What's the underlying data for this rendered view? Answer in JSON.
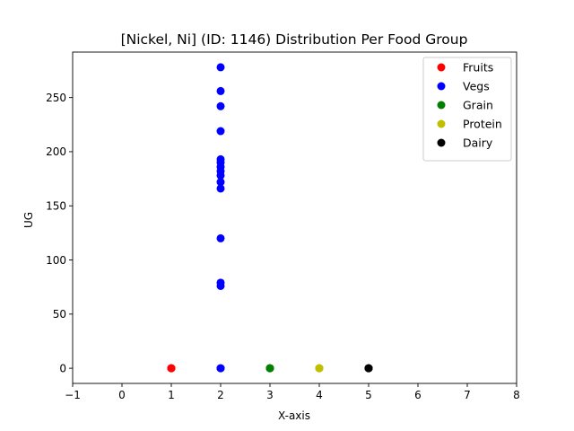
{
  "chart_data": {
    "type": "scatter",
    "title": "[Nickel, Ni] (ID: 1146) Distribution Per Food Group",
    "xlabel": "X-axis",
    "ylabel": "UG",
    "xlim": [
      -1,
      8
    ],
    "ylim": [
      -14,
      292
    ],
    "x_ticks": [
      -1,
      0,
      1,
      2,
      3,
      4,
      5,
      6,
      7,
      8
    ],
    "y_ticks": [
      0,
      50,
      100,
      150,
      200,
      250
    ],
    "x_tick_labels": [
      "−1",
      "0",
      "1",
      "2",
      "3",
      "4",
      "5",
      "6",
      "7",
      "8"
    ],
    "y_tick_labels": [
      "0",
      "50",
      "100",
      "150",
      "200",
      "250"
    ],
    "grid": false,
    "legend_position": "top-right",
    "series": [
      {
        "name": "Fruits",
        "color": "#ff0000",
        "points": [
          [
            1,
            0
          ],
          [
            1,
            0
          ],
          [
            1,
            0
          ]
        ]
      },
      {
        "name": "Vegs",
        "color": "#0000ff",
        "points": [
          [
            2,
            278
          ],
          [
            2,
            256
          ],
          [
            2,
            242
          ],
          [
            2,
            219
          ],
          [
            2,
            193
          ],
          [
            2,
            190
          ],
          [
            2,
            186
          ],
          [
            2,
            182
          ],
          [
            2,
            178
          ],
          [
            2,
            172
          ],
          [
            2,
            166
          ],
          [
            2,
            120
          ],
          [
            2,
            79
          ],
          [
            2,
            76
          ],
          [
            2,
            0
          ],
          [
            2,
            0
          ]
        ]
      },
      {
        "name": "Grain",
        "color": "#008000",
        "points": [
          [
            3,
            0
          ],
          [
            3,
            0
          ],
          [
            3,
            0
          ]
        ]
      },
      {
        "name": "Protein",
        "color": "#bfbf00",
        "points": [
          [
            4,
            0
          ],
          [
            4,
            0
          ],
          [
            4,
            0
          ]
        ]
      },
      {
        "name": "Dairy",
        "color": "#000000",
        "points": [
          [
            5,
            0
          ],
          [
            5,
            0
          ],
          [
            5,
            0
          ]
        ]
      }
    ]
  }
}
